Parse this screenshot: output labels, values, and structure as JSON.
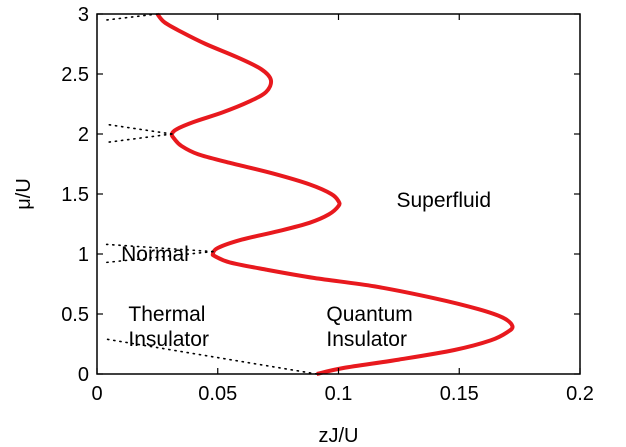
{
  "chart_data": {
    "type": "line",
    "title": "",
    "xlabel": "zJ/U",
    "ylabel": "μ/U",
    "xlim": [
      0,
      0.2
    ],
    "ylim": [
      0,
      3
    ],
    "xticks": [
      0,
      0.05,
      0.1,
      0.15,
      0.2
    ],
    "xtick_labels": [
      "0",
      "0.05",
      "0.1",
      "0.15",
      "0.2"
    ],
    "yticks": [
      0,
      0.5,
      1,
      1.5,
      2,
      2.5,
      3
    ],
    "ytick_labels": [
      "0",
      "0.5",
      "1",
      "1.5",
      "2",
      "2.5",
      "3"
    ],
    "grid": false,
    "series": [
      {
        "style": "solid",
        "color": "#e8191e",
        "points": [
          [
            0.091,
            0.0
          ],
          [
            0.102,
            0.05
          ],
          [
            0.125,
            0.12
          ],
          [
            0.148,
            0.2
          ],
          [
            0.163,
            0.28
          ],
          [
            0.17,
            0.35
          ],
          [
            0.172,
            0.4
          ],
          [
            0.168,
            0.47
          ],
          [
            0.158,
            0.54
          ],
          [
            0.14,
            0.63
          ],
          [
            0.115,
            0.73
          ],
          [
            0.09,
            0.8
          ],
          [
            0.07,
            0.87
          ],
          [
            0.055,
            0.93
          ],
          [
            0.049,
            0.98
          ],
          [
            0.048,
            1.0
          ],
          [
            0.05,
            1.05
          ],
          [
            0.06,
            1.12
          ],
          [
            0.075,
            1.19
          ],
          [
            0.088,
            1.26
          ],
          [
            0.096,
            1.33
          ],
          [
            0.1,
            1.4
          ],
          [
            0.1,
            1.44
          ],
          [
            0.097,
            1.5
          ],
          [
            0.088,
            1.58
          ],
          [
            0.073,
            1.67
          ],
          [
            0.055,
            1.76
          ],
          [
            0.042,
            1.83
          ],
          [
            0.035,
            1.9
          ],
          [
            0.032,
            1.96
          ],
          [
            0.031,
            2.0
          ],
          [
            0.033,
            2.04
          ],
          [
            0.04,
            2.1
          ],
          [
            0.052,
            2.18
          ],
          [
            0.063,
            2.27
          ],
          [
            0.07,
            2.35
          ],
          [
            0.072,
            2.45
          ],
          [
            0.068,
            2.54
          ],
          [
            0.058,
            2.64
          ],
          [
            0.045,
            2.75
          ],
          [
            0.035,
            2.85
          ],
          [
            0.028,
            2.93
          ],
          [
            0.025,
            3.0
          ]
        ]
      },
      {
        "style": "dotted",
        "color": "#000000",
        "points": [
          [
            0.091,
            0.0
          ],
          [
            0.004,
            0.29
          ]
        ]
      },
      {
        "style": "dotted",
        "color": "#000000",
        "points": [
          [
            0.048,
            1.02
          ],
          [
            0.004,
            0.93
          ]
        ]
      },
      {
        "style": "dotted",
        "color": "#000000",
        "points": [
          [
            0.048,
            1.02
          ],
          [
            0.004,
            1.08
          ]
        ]
      },
      {
        "style": "dotted",
        "color": "#000000",
        "points": [
          [
            0.031,
            2.0
          ],
          [
            0.004,
            1.93
          ]
        ]
      },
      {
        "style": "dotted",
        "color": "#000000",
        "points": [
          [
            0.031,
            2.0
          ],
          [
            0.004,
            2.08
          ]
        ]
      },
      {
        "style": "dotted",
        "color": "#000000",
        "points": [
          [
            0.025,
            3.0
          ],
          [
            0.004,
            2.95
          ]
        ]
      }
    ],
    "annotations": [
      {
        "text": "Superfluid",
        "x": 0.124,
        "y": 1.45
      },
      {
        "text": "Normal",
        "x": 0.01,
        "y": 1.0
      },
      {
        "text": "Thermal",
        "x": 0.013,
        "y": 0.5
      },
      {
        "text": "Insulator",
        "x": 0.013,
        "y": 0.29
      },
      {
        "text": "Quantum",
        "x": 0.095,
        "y": 0.5
      },
      {
        "text": "Insulator",
        "x": 0.095,
        "y": 0.29
      }
    ]
  }
}
